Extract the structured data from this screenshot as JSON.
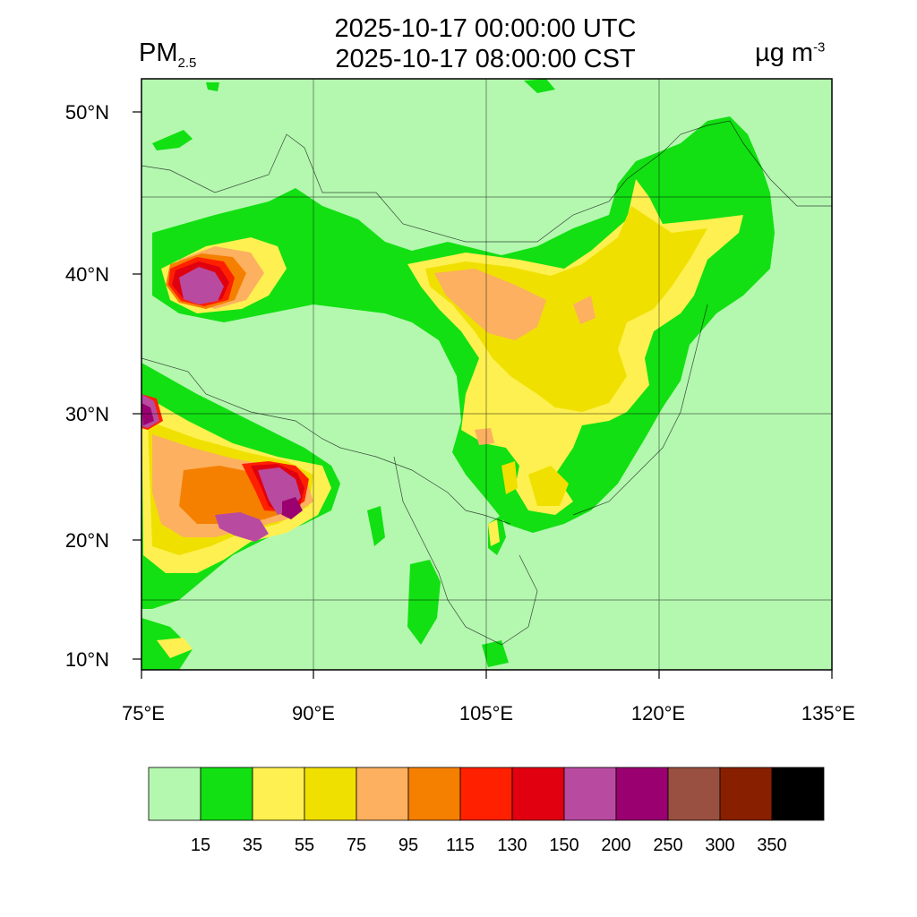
{
  "header": {
    "title_utc": "2025-10-17 00:00:00 UTC",
    "title_cst": "2025-10-17 08:00:00 CST",
    "variable_main": "PM",
    "variable_sub": "2.5",
    "units_main": "µg m",
    "units_sup": "-3"
  },
  "map": {
    "lon_range": [
      75,
      135
    ],
    "lat_range": [
      9,
      52
    ],
    "lon_ticks": [
      "75°E",
      "90°E",
      "105°E",
      "120°E",
      "135°E"
    ],
    "lat_ticks": [
      "10°N",
      "20°N",
      "30°N",
      "40°N",
      "50°N"
    ]
  },
  "colorbar": {
    "colors": [
      "#b4f8b0",
      "#12e012",
      "#fdf050",
      "#f0e000",
      "#fcb060",
      "#f58000",
      "#ff2000",
      "#e00010",
      "#b84ba0",
      "#9a0070",
      "#9a5040",
      "#882000",
      "#000000"
    ],
    "labels": [
      "15",
      "35",
      "55",
      "75",
      "95",
      "115",
      "130",
      "150",
      "200",
      "250",
      "300",
      "350"
    ]
  }
}
